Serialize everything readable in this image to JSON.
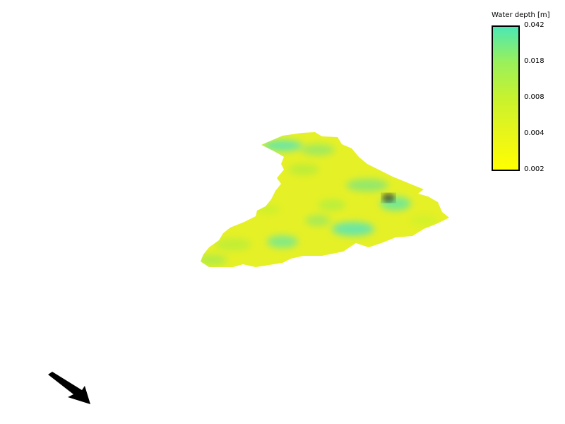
{
  "legend": {
    "title": "Water depth [m]",
    "ticks": [
      "0.042",
      "0.018",
      "0.008",
      "0.004",
      "0.002"
    ],
    "colors": {
      "max": "#4ce8b4",
      "high": "#9af05a",
      "mid": "#c8f22e",
      "low": "#e8f51a",
      "min": "#ffff00"
    }
  },
  "map": {
    "surface_base_color": "#e6f026",
    "deep_color": "#5ee6b0",
    "hotspot_color": "#222222"
  },
  "north_arrow": {
    "icon": "north-arrow-icon",
    "color": "#000000"
  }
}
